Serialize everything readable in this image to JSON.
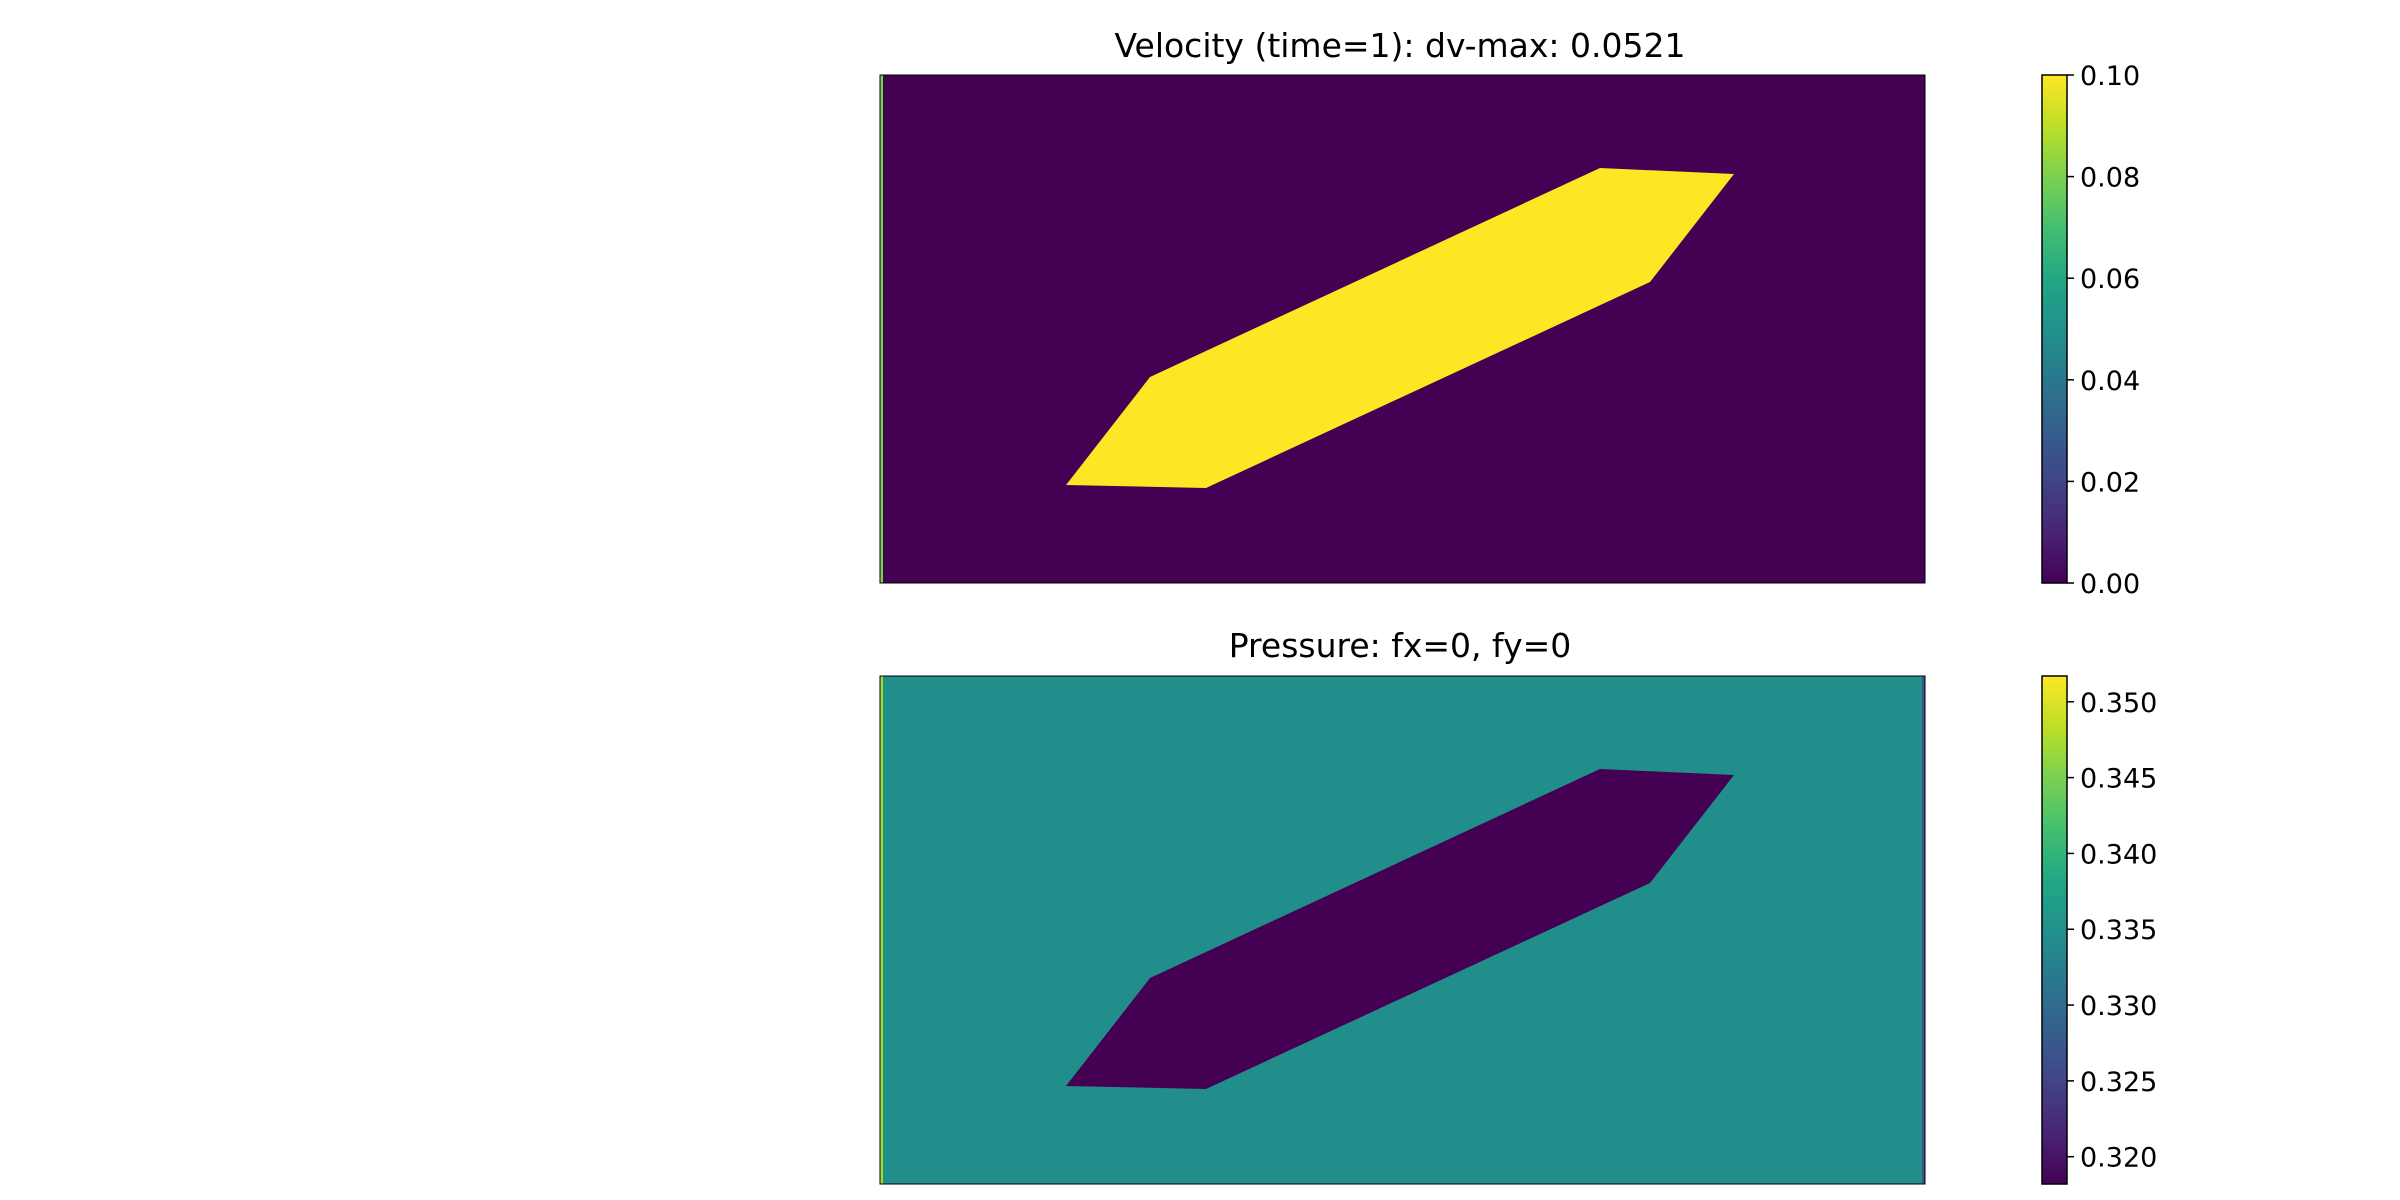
{
  "chart_data": [
    {
      "type": "heatmap",
      "title": "Velocity (time=1): dv-max: 0.0521",
      "colormap": "viridis",
      "value_range": [
        0.0,
        0.1
      ],
      "background_value": 0.0,
      "obstacle_value": 0.1,
      "inlet_edge_value": 0.08,
      "outlet_edge_value": 0.0,
      "colorbar_ticks": [
        "0.00",
        "0.02",
        "0.04",
        "0.06",
        "0.08",
        "0.10"
      ],
      "colorbar_tick_values": [
        0.0,
        0.02,
        0.04,
        0.06,
        0.08,
        0.1
      ],
      "xlabel": "",
      "ylabel": ""
    },
    {
      "type": "heatmap",
      "title": "Pressure: fx=0, fy=0",
      "colormap": "viridis",
      "value_range": [
        0.3182,
        0.3517
      ],
      "background_value": 0.3345,
      "obstacle_value": 0.3182,
      "inlet_edge_value": 0.347,
      "outlet_edge_value": 0.327,
      "colorbar_ticks": [
        "0.350",
        "0.345",
        "0.340",
        "0.335",
        "0.330",
        "0.325",
        "0.320"
      ],
      "colorbar_tick_values": [
        0.35,
        0.345,
        0.34,
        0.335,
        0.33,
        0.325,
        0.32
      ],
      "xlabel": "",
      "ylabel": ""
    }
  ]
}
